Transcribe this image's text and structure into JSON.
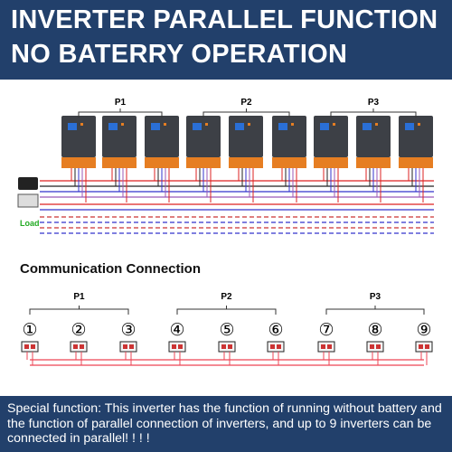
{
  "header": {
    "title_lines": [
      "INVERTER PARALLEL FUNCTION",
      "NO BATERRY OPERATION"
    ]
  },
  "wiring_diagram": {
    "groups": [
      "P1",
      "P2",
      "P3"
    ],
    "load_label": "Load"
  },
  "communication": {
    "title": "Communication Connection",
    "groups": [
      "P1",
      "P2",
      "P3"
    ],
    "nodes": [
      "①",
      "②",
      "③",
      "④",
      "⑤",
      "⑥",
      "⑦",
      "⑧",
      "⑨"
    ]
  },
  "footer": {
    "text": "Special function: This inverter has the function of running without battery and the function of parallel connection of inverters, and up to 9 inverters can be connected in parallel! ! ! !"
  }
}
